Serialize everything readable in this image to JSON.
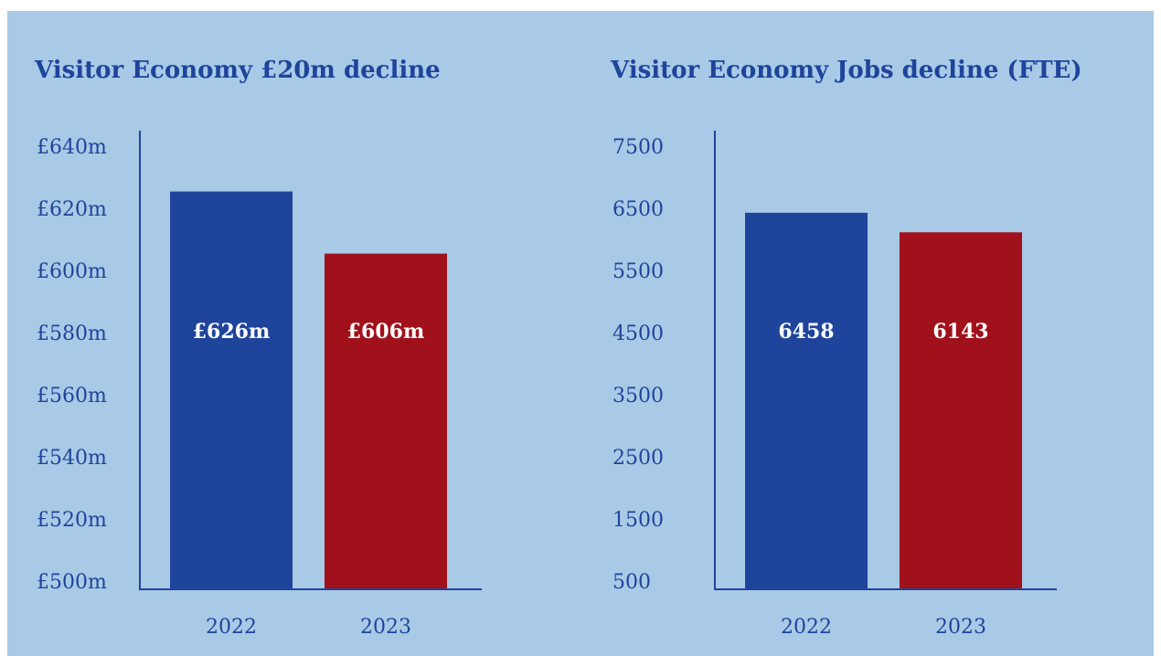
{
  "chart_data": [
    {
      "type": "bar",
      "title": "Visitor Economy £20m decline",
      "categories": [
        "2022",
        "2023"
      ],
      "values": [
        626,
        606
      ],
      "value_labels": [
        "£626m",
        "£606m"
      ],
      "colors": [
        "#1f449b",
        "#a0111b"
      ],
      "ylim": [
        500,
        640
      ],
      "yticks": [
        {
          "value": 500,
          "label": "£500m"
        },
        {
          "value": 520,
          "label": "£520m"
        },
        {
          "value": 540,
          "label": "£540m"
        },
        {
          "value": 560,
          "label": "£560m"
        },
        {
          "value": 580,
          "label": "£580m"
        },
        {
          "value": 600,
          "label": "£600m"
        },
        {
          "value": 620,
          "label": "£620m"
        },
        {
          "value": 640,
          "label": "£640m"
        }
      ]
    },
    {
      "type": "bar",
      "title": "Visitor Economy Jobs decline (FTE)",
      "categories": [
        "2022",
        "2023"
      ],
      "values": [
        6458,
        6143
      ],
      "colors": [
        "#1f449b",
        "#a0111b"
      ],
      "ylim": [
        500,
        7500
      ],
      "yticks": [
        500,
        1500,
        2500,
        3500,
        4500,
        5500,
        6500,
        7500
      ]
    }
  ]
}
